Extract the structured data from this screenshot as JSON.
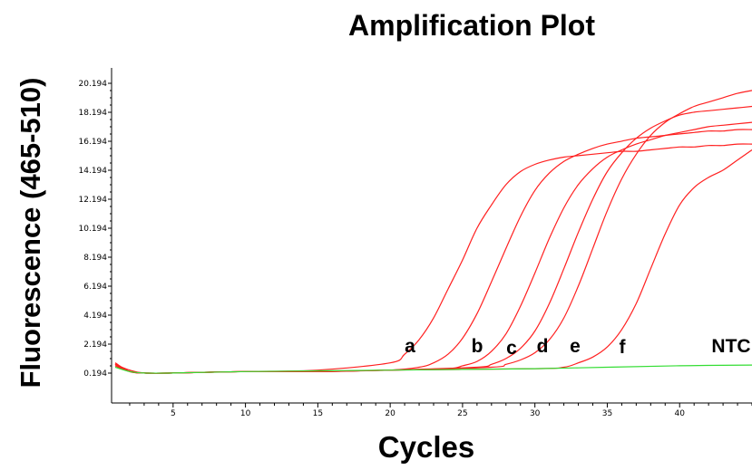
{
  "chart_data": {
    "type": "line",
    "title": "Amplification Plot",
    "xlabel": "Cycles",
    "ylabel": "Fluorescence (465-510)",
    "xlim": [
      1,
      45
    ],
    "ylim": [
      -1.2,
      21.5
    ],
    "x_ticks": [
      5,
      10,
      15,
      20,
      25,
      30,
      35,
      40
    ],
    "y_ticks": [
      0.194,
      2.194,
      4.194,
      6.194,
      8.194,
      10.194,
      12.194,
      14.194,
      16.194,
      18.194,
      20.194
    ],
    "y_tick_labels": [
      "0.194",
      "2.194",
      "4.194",
      "6.194",
      "8.194",
      "10.194",
      "12.194",
      "14.194",
      "16.194",
      "18.194",
      "20.194"
    ],
    "grid": false,
    "colors": {
      "sample": "#ff2020",
      "ntc": "#33dd33"
    },
    "series": [
      {
        "label": "a",
        "color": "#ff2020",
        "x": [
          1,
          2,
          3,
          5,
          10,
          15,
          20,
          21,
          22,
          23,
          24,
          25,
          26,
          27,
          28,
          29,
          30,
          31,
          32,
          33,
          34,
          35,
          36,
          37,
          38,
          39,
          40,
          41,
          42,
          43,
          44,
          45
        ],
        "y": [
          0.8,
          0.4,
          0.2,
          0.2,
          0.3,
          0.4,
          0.9,
          1.5,
          2.5,
          4.0,
          6.0,
          8.0,
          10.2,
          11.8,
          13.2,
          14.1,
          14.6,
          14.9,
          15.1,
          15.2,
          15.3,
          15.4,
          15.5,
          15.5,
          15.6,
          15.7,
          15.8,
          15.8,
          15.9,
          15.9,
          16.0,
          16.0
        ]
      },
      {
        "label": "b",
        "color": "#ff2020",
        "x": [
          1,
          2,
          3,
          5,
          10,
          15,
          20,
          22,
          23,
          24,
          25,
          26,
          27,
          28,
          29,
          30,
          31,
          32,
          33,
          34,
          35,
          36,
          37,
          38,
          39,
          40,
          41,
          42,
          43,
          44,
          45
        ],
        "y": [
          0.7,
          0.3,
          0.2,
          0.2,
          0.3,
          0.3,
          0.4,
          0.6,
          0.9,
          1.5,
          2.6,
          4.3,
          6.5,
          8.8,
          11.0,
          12.8,
          14.0,
          14.8,
          15.3,
          15.7,
          16.0,
          16.2,
          16.4,
          16.5,
          16.6,
          16.7,
          16.8,
          16.9,
          16.9,
          17.0,
          17.0
        ]
      },
      {
        "label": "c",
        "color": "#ff2020",
        "x": [
          1,
          2,
          3,
          5,
          10,
          15,
          20,
          24,
          25,
          26,
          27,
          28,
          29,
          30,
          31,
          32,
          33,
          34,
          35,
          36,
          37,
          38,
          39,
          40,
          41,
          42,
          43,
          44,
          45
        ],
        "y": [
          0.8,
          0.3,
          0.2,
          0.2,
          0.3,
          0.3,
          0.4,
          0.5,
          0.7,
          1.0,
          1.7,
          2.9,
          4.8,
          7.1,
          9.5,
          11.6,
          13.2,
          14.3,
          15.1,
          15.6,
          16.0,
          16.3,
          16.6,
          16.8,
          17.0,
          17.2,
          17.3,
          17.4,
          17.5
        ]
      },
      {
        "label": "d",
        "color": "#ff2020",
        "x": [
          1,
          2,
          3,
          5,
          10,
          15,
          20,
          26,
          27,
          28,
          29,
          30,
          31,
          32,
          33,
          34,
          35,
          36,
          37,
          38,
          39,
          40,
          41,
          42,
          43,
          44,
          45
        ],
        "y": [
          0.9,
          0.3,
          0.2,
          0.2,
          0.3,
          0.3,
          0.4,
          0.6,
          0.8,
          1.2,
          1.9,
          3.1,
          5.0,
          7.4,
          9.9,
          12.2,
          14.1,
          15.4,
          16.4,
          17.1,
          17.6,
          18.0,
          18.2,
          18.3,
          18.4,
          18.5,
          18.6
        ]
      },
      {
        "label": "e",
        "color": "#ff2020",
        "x": [
          1,
          2,
          3,
          5,
          10,
          15,
          20,
          27,
          28,
          29,
          30,
          31,
          32,
          33,
          34,
          35,
          36,
          37,
          38,
          39,
          40,
          41,
          42,
          43,
          44,
          45
        ],
        "y": [
          0.8,
          0.3,
          0.2,
          0.2,
          0.3,
          0.3,
          0.4,
          0.6,
          0.8,
          1.1,
          1.6,
          2.5,
          4.0,
          6.2,
          8.8,
          11.4,
          13.6,
          15.3,
          16.6,
          17.5,
          18.1,
          18.6,
          18.9,
          19.2,
          19.5,
          19.7
        ]
      },
      {
        "label": "f",
        "color": "#ff2020",
        "x": [
          1,
          2,
          3,
          5,
          10,
          15,
          20,
          30,
          32,
          33,
          34,
          35,
          36,
          37,
          38,
          39,
          40,
          41,
          42,
          43,
          44,
          45
        ],
        "y": [
          0.8,
          0.3,
          0.2,
          0.2,
          0.3,
          0.3,
          0.4,
          0.5,
          0.6,
          0.9,
          1.3,
          2.0,
          3.2,
          5.0,
          7.4,
          9.8,
          11.8,
          13.0,
          13.7,
          14.2,
          14.9,
          15.6
        ]
      },
      {
        "label": "NTC",
        "color": "#33dd33",
        "x": [
          1,
          2,
          3,
          5,
          10,
          15,
          20,
          25,
          30,
          35,
          40,
          45
        ],
        "y": [
          0.6,
          0.3,
          0.2,
          0.2,
          0.3,
          0.35,
          0.4,
          0.45,
          0.5,
          0.6,
          0.7,
          0.75
        ]
      }
    ]
  }
}
